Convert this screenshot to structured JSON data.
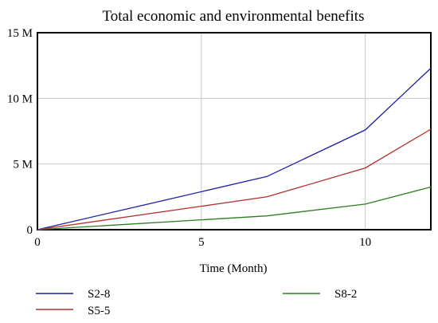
{
  "chart_data": {
    "type": "line",
    "title": "Total economic and environmental benefits",
    "xlabel": "Time (Month)",
    "ylabel": "",
    "xlim": [
      0,
      12
    ],
    "ylim": [
      0,
      15000000
    ],
    "x_ticks": [
      {
        "value": 0,
        "label": "0"
      },
      {
        "value": 5,
        "label": "5"
      },
      {
        "value": 10,
        "label": "10"
      }
    ],
    "y_ticks": [
      {
        "value": 0,
        "label": "0"
      },
      {
        "value": 5000000,
        "label": "5 M"
      },
      {
        "value": 10000000,
        "label": "10 M"
      },
      {
        "value": 15000000,
        "label": "15 M"
      }
    ],
    "grid": true,
    "legend_position": "bottom",
    "series": [
      {
        "name": "S2-8",
        "color": "#1f1fa3",
        "x": [
          0,
          7,
          10,
          12
        ],
        "values": [
          0,
          4050000,
          7600000,
          12300000
        ]
      },
      {
        "name": "S5-5",
        "color": "#b2302a",
        "x": [
          0,
          7,
          10,
          12
        ],
        "values": [
          0,
          2500000,
          4700000,
          7650000
        ]
      },
      {
        "name": "S8-2",
        "color": "#2e7d22",
        "x": [
          0,
          7,
          10,
          12
        ],
        "values": [
          0,
          1050000,
          1950000,
          3250000
        ]
      }
    ]
  }
}
